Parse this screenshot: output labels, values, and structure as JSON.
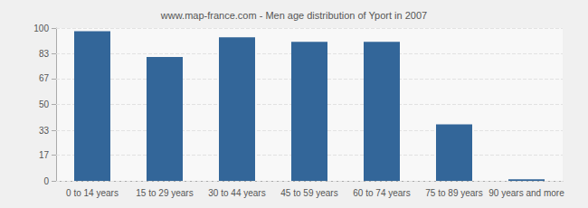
{
  "chart_data": {
    "type": "bar",
    "title": "www.map-france.com - Men age distribution of Yport in 2007",
    "categories": [
      "0 to 14 years",
      "15 to 29 years",
      "30 to 44 years",
      "45 to 59 years",
      "60 to 74 years",
      "75 to 89 years",
      "90 years and more"
    ],
    "values": [
      98,
      81,
      94,
      91,
      91,
      37,
      1
    ],
    "color": "#336699",
    "ylim": [
      0,
      100
    ],
    "yticks": [
      0,
      17,
      33,
      50,
      67,
      83,
      100
    ],
    "grid": true
  }
}
